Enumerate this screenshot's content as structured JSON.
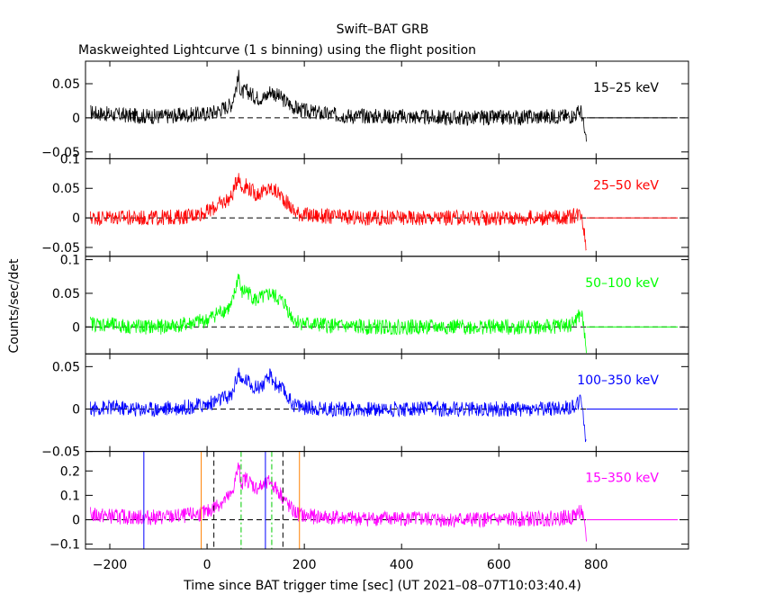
{
  "chart_data": {
    "type": "line",
    "title": "Swift–BAT GRB",
    "subtitle": "Maskweighted Lightcurve (1 s binning) using the flight position",
    "xlabel": "Time since BAT trigger time [sec] (UT 2021–08–07T10:03:40.4)",
    "ylabel": "Counts/sec/det",
    "xlim": [
      -250,
      990
    ],
    "xticks": [
      -200,
      0,
      200,
      400,
      600,
      800
    ],
    "xtick_labels": [
      "−200",
      "0",
      "200",
      "400",
      "600",
      "800"
    ],
    "grid": false,
    "panels": [
      {
        "band": "15–25 keV",
        "color": "#000000",
        "ylim": [
          -0.06,
          0.083
        ],
        "yticks": [
          -0.05,
          0,
          0.05
        ],
        "ytick_labels": [
          "−0.05",
          "0",
          "0.05"
        ],
        "series": {
          "x": [
            -240,
            -200,
            -150,
            -100,
            -50,
            0,
            20,
            50,
            60,
            65,
            70,
            80,
            100,
            120,
            130,
            140,
            150,
            160,
            170,
            180,
            200,
            250,
            300,
            400,
            500,
            600,
            700,
            750,
            770,
            780
          ],
          "y": [
            0.008,
            0.005,
            0.003,
            0.002,
            0.004,
            0.006,
            0.01,
            0.02,
            0.045,
            0.06,
            0.035,
            0.04,
            0.03,
            0.03,
            0.04,
            0.035,
            0.03,
            0.025,
            0.02,
            0.015,
            0.01,
            0.005,
            0.003,
            0.002,
            0.0,
            0.0,
            0.002,
            0.003,
            0.01,
            -0.04
          ]
        },
        "after_end": {
          "from": 780,
          "value": 0
        }
      },
      {
        "band": "25–50 keV",
        "color": "#ff0000",
        "ylim": [
          -0.065,
          0.1
        ],
        "yticks": [
          -0.05,
          0,
          0.05,
          0.1
        ],
        "ytick_labels": [
          "−0.05",
          "0",
          "0.05",
          "0.1"
        ],
        "series": {
          "x": [
            -240,
            -200,
            -150,
            -100,
            -50,
            0,
            20,
            50,
            60,
            65,
            70,
            80,
            100,
            120,
            130,
            140,
            150,
            160,
            170,
            180,
            200,
            250,
            300,
            400,
            500,
            600,
            700,
            750,
            770,
            780
          ],
          "y": [
            0.0,
            0.002,
            0.0,
            0.0,
            0.002,
            0.01,
            0.02,
            0.035,
            0.06,
            0.075,
            0.05,
            0.055,
            0.04,
            0.045,
            0.05,
            0.045,
            0.04,
            0.03,
            0.02,
            0.01,
            0.005,
            0.002,
            0.0,
            0.0,
            0.0,
            0.0,
            0.0,
            0.002,
            0.01,
            -0.05
          ]
        },
        "after_end": {
          "from": 780,
          "value": 0
        }
      },
      {
        "band": "50–100 keV",
        "color": "#00ff00",
        "ylim": [
          -0.04,
          0.105
        ],
        "yticks": [
          0,
          0.05,
          0.1
        ],
        "ytick_labels": [
          "0",
          "0.05",
          "0.1"
        ],
        "series": {
          "x": [
            -240,
            -200,
            -150,
            -100,
            -50,
            0,
            20,
            50,
            60,
            65,
            70,
            80,
            100,
            120,
            130,
            140,
            150,
            160,
            170,
            180,
            200,
            250,
            300,
            400,
            500,
            600,
            700,
            750,
            770,
            780
          ],
          "y": [
            0.005,
            0.003,
            0.0,
            0.0,
            0.003,
            0.01,
            0.02,
            0.03,
            0.06,
            0.08,
            0.05,
            0.055,
            0.04,
            0.045,
            0.05,
            0.045,
            0.04,
            0.035,
            0.02,
            0.01,
            0.005,
            0.002,
            0.0,
            0.0,
            0.0,
            0.0,
            0.0,
            0.003,
            0.02,
            -0.03
          ]
        },
        "after_end": {
          "from": 780,
          "value": 0
        }
      },
      {
        "band": "100–350 keV",
        "color": "#0000ff",
        "ylim": [
          -0.05,
          0.065
        ],
        "yticks": [
          -0.05,
          0,
          0.05
        ],
        "ytick_labels": [
          "−0.05",
          "0",
          "0.05"
        ],
        "series": {
          "x": [
            -240,
            -200,
            -150,
            -100,
            -50,
            0,
            20,
            50,
            60,
            65,
            70,
            80,
            100,
            120,
            130,
            140,
            150,
            160,
            170,
            180,
            200,
            250,
            300,
            400,
            500,
            600,
            700,
            750,
            770,
            780
          ],
          "y": [
            0.0,
            0.002,
            0.0,
            0.0,
            0.002,
            0.005,
            0.01,
            0.015,
            0.035,
            0.045,
            0.03,
            0.035,
            0.025,
            0.03,
            0.04,
            0.03,
            0.025,
            0.02,
            0.01,
            0.005,
            0.002,
            0.0,
            0.0,
            0.0,
            0.0,
            0.0,
            0.0,
            0.002,
            0.01,
            -0.04
          ]
        },
        "after_end": {
          "from": 780,
          "value": 0
        }
      },
      {
        "band": "15–350 keV",
        "color": "#ff00ff",
        "ylim": [
          -0.12,
          0.28
        ],
        "yticks": [
          -0.1,
          0,
          0.1,
          0.2
        ],
        "ytick_labels": [
          "−0.1",
          "0",
          "0.1",
          "0.2"
        ],
        "series": {
          "x": [
            -240,
            -200,
            -150,
            -100,
            -50,
            0,
            20,
            50,
            60,
            65,
            70,
            80,
            100,
            120,
            130,
            140,
            150,
            160,
            170,
            180,
            200,
            250,
            300,
            400,
            500,
            600,
            700,
            750,
            770,
            780
          ],
          "y": [
            0.02,
            0.015,
            0.01,
            0.01,
            0.015,
            0.03,
            0.06,
            0.1,
            0.18,
            0.22,
            0.15,
            0.17,
            0.13,
            0.14,
            0.16,
            0.13,
            0.11,
            0.08,
            0.05,
            0.03,
            0.015,
            0.01,
            0.005,
            0.005,
            0.0,
            0.0,
            0.005,
            0.01,
            0.04,
            -0.08
          ]
        },
        "after_end": {
          "from": 780,
          "value": 0
        },
        "vertical_markers": [
          {
            "x": -130,
            "color": "#0000ff",
            "style": "solid"
          },
          {
            "x": -12,
            "color": "#ff8000",
            "style": "solid"
          },
          {
            "x": 190,
            "color": "#ff8000",
            "style": "solid"
          },
          {
            "x": 14,
            "color": "#000000",
            "style": "dashed"
          },
          {
            "x": 156,
            "color": "#000000",
            "style": "dashed"
          },
          {
            "x": 70,
            "color": "#00cc00",
            "style": "dashdot"
          },
          {
            "x": 133,
            "color": "#00cc00",
            "style": "dashdot"
          },
          {
            "x": 120,
            "color": "#0000ff",
            "style": "solid"
          }
        ]
      }
    ]
  }
}
